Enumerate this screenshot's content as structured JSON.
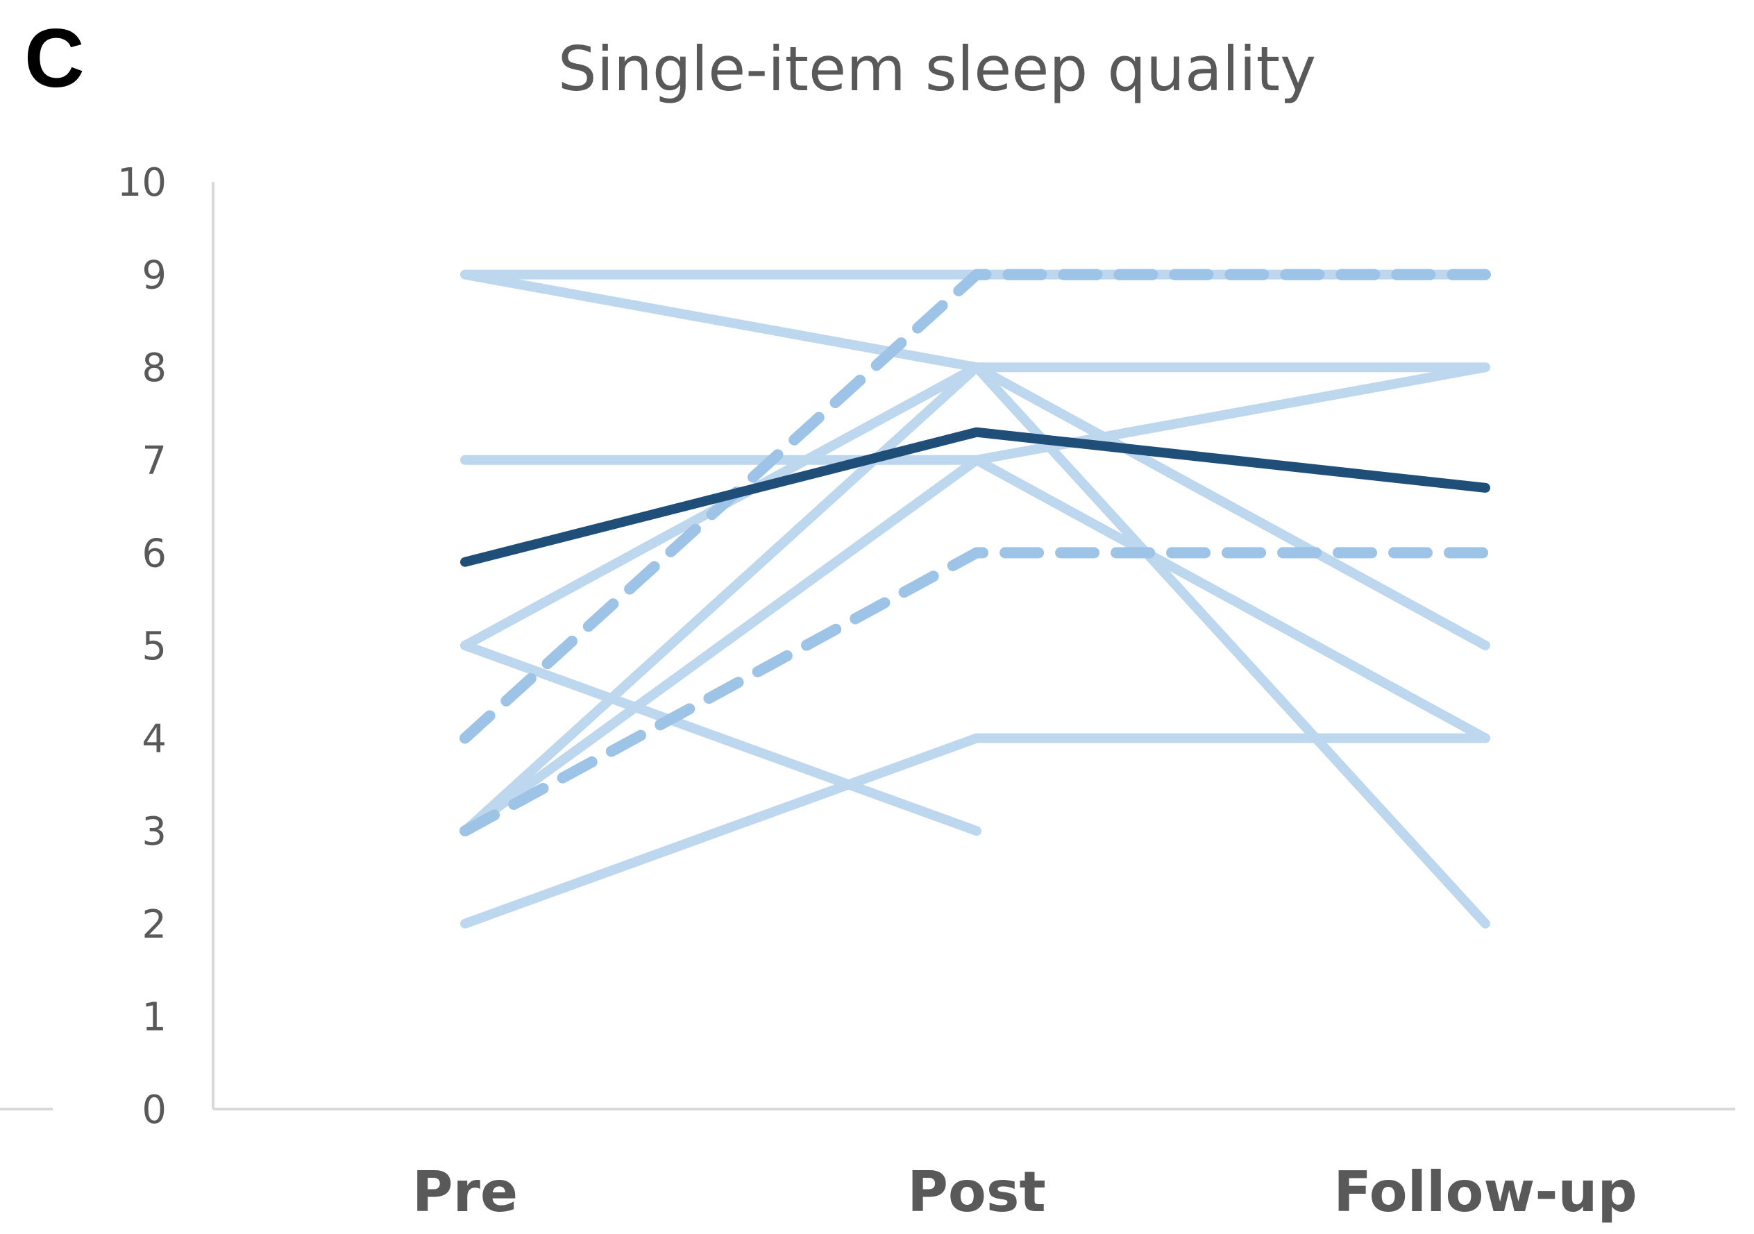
{
  "panel_label": "C",
  "chart_data": {
    "type": "line",
    "title": "Single-item sleep quality",
    "xlabel": "",
    "ylabel": "",
    "categories": [
      "Pre",
      "Post",
      "Follow-up"
    ],
    "ylim": [
      0,
      10
    ],
    "yticks": [
      0,
      1,
      2,
      3,
      4,
      5,
      6,
      7,
      8,
      9,
      10
    ],
    "grid": false,
    "legend": "none",
    "colors": {
      "individual": "#bdd7ee",
      "individual_dashed": "#9dc3e6",
      "mean": "#1f4e79",
      "axis": "#d9d9d9",
      "text": "#595959"
    },
    "series": [
      {
        "values": [
          9,
          9,
          9
        ],
        "style": "solid"
      },
      {
        "values": [
          9,
          8,
          8
        ],
        "style": "solid"
      },
      {
        "values": [
          7,
          7,
          8
        ],
        "style": "solid"
      },
      {
        "values": [
          5,
          8,
          5
        ],
        "style": "solid"
      },
      {
        "values": [
          5,
          3,
          null
        ],
        "style": "solid"
      },
      {
        "values": [
          3,
          8,
          2
        ],
        "style": "solid"
      },
      {
        "values": [
          3,
          7,
          4
        ],
        "style": "solid"
      },
      {
        "values": [
          2,
          4,
          4
        ],
        "style": "solid"
      },
      {
        "values": [
          4,
          9,
          9
        ],
        "style": "dashed"
      },
      {
        "values": [
          3,
          6,
          6
        ],
        "style": "dashed"
      },
      {
        "values": [
          5.9,
          7.3,
          6.7
        ],
        "style": "mean"
      }
    ]
  }
}
